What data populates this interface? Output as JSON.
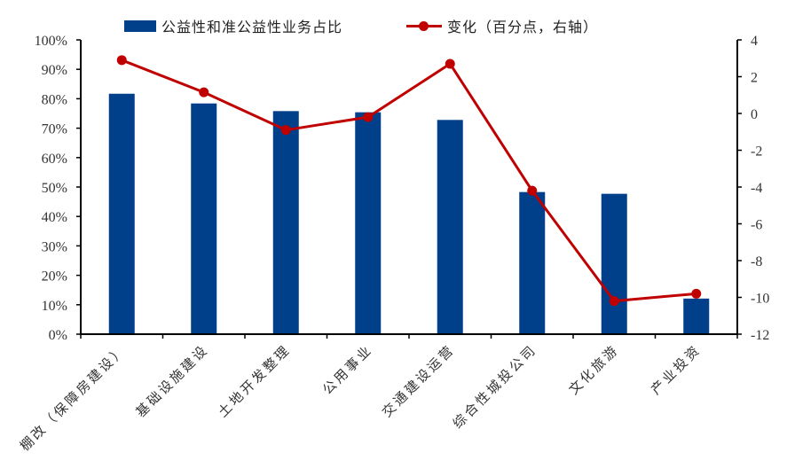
{
  "legend": {
    "bar_label": "公益性和准公益性业务占比",
    "line_label": "变化（百分点，右轴）"
  },
  "colors": {
    "bar": "#003F8A",
    "line": "#C00000",
    "axis": "#000000"
  },
  "chart_data": {
    "type": "bar+line",
    "title": "",
    "categories": [
      "棚改（保障房建设）",
      "基础设施建设",
      "土地开发整理",
      "公用事业",
      "交通建设运营",
      "综合性城投公司",
      "文化旅游",
      "产业投资"
    ],
    "series": [
      {
        "name": "公益性和准公益性业务占比",
        "type": "bar",
        "axis": "left",
        "unit": "%",
        "values": [
          81.7,
          78.4,
          75.8,
          75.4,
          72.8,
          48.3,
          47.7,
          12.1
        ]
      },
      {
        "name": "变化（百分点，右轴）",
        "type": "line",
        "axis": "right",
        "unit": "pp",
        "values": [
          2.9,
          1.15,
          -0.9,
          -0.2,
          2.7,
          -4.2,
          -10.2,
          -9.8
        ]
      }
    ],
    "left_axis": {
      "ylim": [
        0,
        100
      ],
      "ticks": [
        "0%",
        "10%",
        "20%",
        "30%",
        "40%",
        "50%",
        "60%",
        "70%",
        "80%",
        "90%",
        "100%"
      ]
    },
    "right_axis": {
      "ylim": [
        -12,
        4
      ],
      "ticks": [
        "-12",
        "-10",
        "-8",
        "-6",
        "-4",
        "-2",
        "0",
        "2",
        "4"
      ]
    },
    "xlabel": "",
    "ylabel": "",
    "grid": false,
    "legend_position": "top"
  }
}
